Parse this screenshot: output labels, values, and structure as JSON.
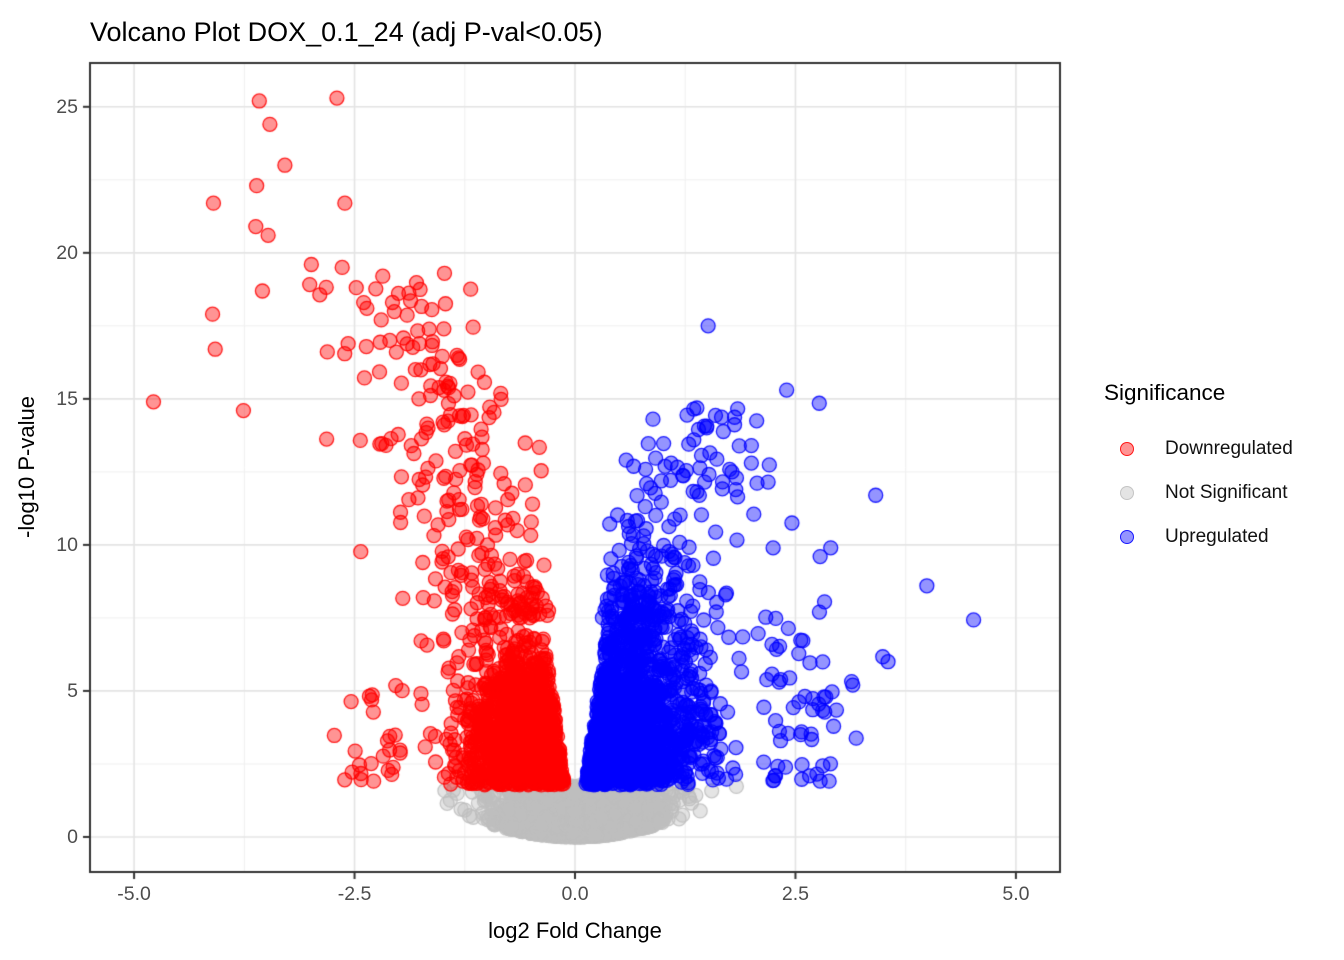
{
  "chart_data": {
    "type": "scatter",
    "subtype": "volcano-plot",
    "title": "Volcano Plot DOX_0.1_24 (adj P-val<0.05)",
    "xlabel": "log2 Fold Change",
    "ylabel": "-log10 P-value",
    "xlim": [
      -5.5,
      5.5
    ],
    "ylim": [
      -1.2,
      26.5
    ],
    "x_ticks": {
      "values": [
        -5,
        -2.5,
        0,
        2.5,
        5
      ],
      "labels": [
        "-5.0",
        "-2.5",
        "0.0",
        "2.5",
        "5.0"
      ]
    },
    "y_ticks": {
      "values": [
        0,
        5,
        10,
        15,
        20,
        25
      ],
      "labels": [
        "0",
        "5",
        "10",
        "15",
        "20",
        "25"
      ]
    },
    "x_minor_ticks": [
      -3.75,
      -1.25,
      1.25,
      3.75
    ],
    "y_minor_ticks": [
      2.5,
      7.5,
      12.5,
      17.5,
      22.5
    ],
    "grid": {
      "on": true,
      "major_color": "#E4E4E4",
      "minor_color": "#F0F0F0"
    },
    "panel": {
      "background": "#FFFFFF",
      "border_color": "#333333"
    },
    "axis": {
      "tick_color": "#333333",
      "tick_label_color": "#4D4D4D"
    },
    "point_style": {
      "radius": 7,
      "fill_alpha": 0.42,
      "stroke_alpha": 0.85
    },
    "significance_threshold_y": 1.78,
    "seed": 42,
    "legend": {
      "title": "Significance",
      "position": "right",
      "items": [
        {
          "label": "Downregulated",
          "color": "#FF0000"
        },
        {
          "label": "Not Significant",
          "color": "#BEBEBE"
        },
        {
          "label": "Upregulated",
          "color": "#0000FF"
        }
      ]
    },
    "series": [
      {
        "name": "Not Significant",
        "color": "#BEBEBE",
        "outliers": [
          [
            1.55,
            1.58
          ],
          [
            1.83,
            1.73
          ],
          [
            1.32,
            1.16
          ],
          [
            1.42,
            0.89
          ],
          [
            -1.38,
            1.6
          ],
          [
            -1.45,
            1.15
          ],
          [
            1.18,
            0.62
          ],
          [
            -1.25,
            0.92
          ]
        ],
        "clouds": [
          {
            "kind": "bowl",
            "n": 1620,
            "x_sigma": 0.45,
            "x_clip": 1.9,
            "env_a": 0.5,
            "y_top": 1.76,
            "y_pow": 1.7,
            "wedge_y0": 0.6,
            "wedge_a": 0.05,
            "wedge_b": 0.11,
            "spike_halfwidth": 0.05
          },
          {
            "kind": "spike",
            "n": 70,
            "x_sigma": 0.018,
            "y_top": 1.62,
            "y_pow": 1.25
          }
        ]
      },
      {
        "name": "Downregulated",
        "color": "#FF0000",
        "outliers": [
          [
            -2.7,
            25.3
          ],
          [
            -3.58,
            25.2
          ],
          [
            -3.46,
            24.4
          ],
          [
            -3.29,
            23.0
          ],
          [
            -3.61,
            22.3
          ],
          [
            -4.1,
            21.7
          ],
          [
            -2.61,
            21.7
          ],
          [
            -3.62,
            20.9
          ],
          [
            -3.48,
            20.6
          ],
          [
            -2.99,
            19.6
          ],
          [
            -2.64,
            19.5
          ],
          [
            -2.18,
            19.2
          ],
          [
            -1.48,
            19.3
          ],
          [
            -4.11,
            17.9
          ],
          [
            -2.07,
            18.3
          ],
          [
            -2.36,
            18.1
          ],
          [
            -2.1,
            17.0
          ],
          [
            -4.08,
            16.7
          ],
          [
            -1.61,
            16.2
          ],
          [
            -1.81,
            16.0
          ],
          [
            -1.77,
            15.0
          ],
          [
            -4.78,
            14.9
          ],
          [
            -3.76,
            14.6
          ]
        ],
        "clouds": [
          {
            "kind": "core",
            "n": 1250,
            "side": -1,
            "y0": 1.78,
            "y_sigma": 2.3,
            "y_max": 9.0,
            "x_sigma": 0.5,
            "x_clip": 2.05,
            "inner_a": 0.1,
            "inner_b": 0.045
          },
          {
            "kind": "band",
            "n": 230,
            "side": -1,
            "y_start": 7.5,
            "y_span": 11.5,
            "y_pow": 1.5,
            "x_base": 0.55,
            "slope": 0.15,
            "x_sigma": 0.5,
            "x_min": 0.3,
            "x_max": 4.35
          },
          {
            "kind": "band",
            "n": 26,
            "side": -1,
            "y_start": 1.9,
            "y_span": 4.2,
            "y_pow": 1.6,
            "x_base": 2.05,
            "slope": -0.1,
            "x_sigma": 0.35,
            "x_min": 1.95,
            "x_max": 3.45
          }
        ]
      },
      {
        "name": "Upregulated",
        "color": "#0000FF",
        "outliers": [
          [
            1.51,
            17.5
          ],
          [
            2.4,
            15.3
          ],
          [
            2.77,
            14.85
          ],
          [
            1.29,
            13.45
          ],
          [
            2.0,
            13.4
          ],
          [
            1.53,
            13.15
          ],
          [
            1.09,
            12.8
          ],
          [
            2.0,
            12.8
          ],
          [
            1.78,
            12.5
          ],
          [
            1.47,
            12.15
          ],
          [
            2.19,
            12.15
          ],
          [
            3.41,
            11.7
          ],
          [
            2.46,
            10.75
          ],
          [
            2.9,
            9.9
          ],
          [
            2.78,
            9.6
          ],
          [
            3.99,
            8.6
          ],
          [
            4.52,
            7.43
          ],
          [
            3.49,
            6.17
          ],
          [
            3.55,
            6.0
          ],
          [
            3.15,
            5.2
          ],
          [
            2.83,
            8.05
          ]
        ],
        "clouds": [
          {
            "kind": "core",
            "n": 1550,
            "side": 1,
            "y0": 1.78,
            "y_sigma": 2.7,
            "y_max": 10.8,
            "x_sigma": 0.58,
            "x_clip": 2.28,
            "inner_a": 0.1,
            "inner_b": 0.045
          },
          {
            "kind": "band",
            "n": 150,
            "side": 1,
            "y_start": 7.5,
            "y_span": 7.2,
            "y_pow": 1.5,
            "x_base": 0.5,
            "slope": 0.16,
            "x_sigma": 0.45,
            "x_min": 0.28,
            "x_max": 3.6
          },
          {
            "kind": "band",
            "n": 55,
            "side": 1,
            "y_start": 1.9,
            "y_span": 5.8,
            "y_pow": 1.6,
            "x_base": 2.35,
            "slope": 0.05,
            "x_sigma": 0.4,
            "x_min": 2.05,
            "x_max": 4.15
          }
        ]
      }
    ]
  }
}
